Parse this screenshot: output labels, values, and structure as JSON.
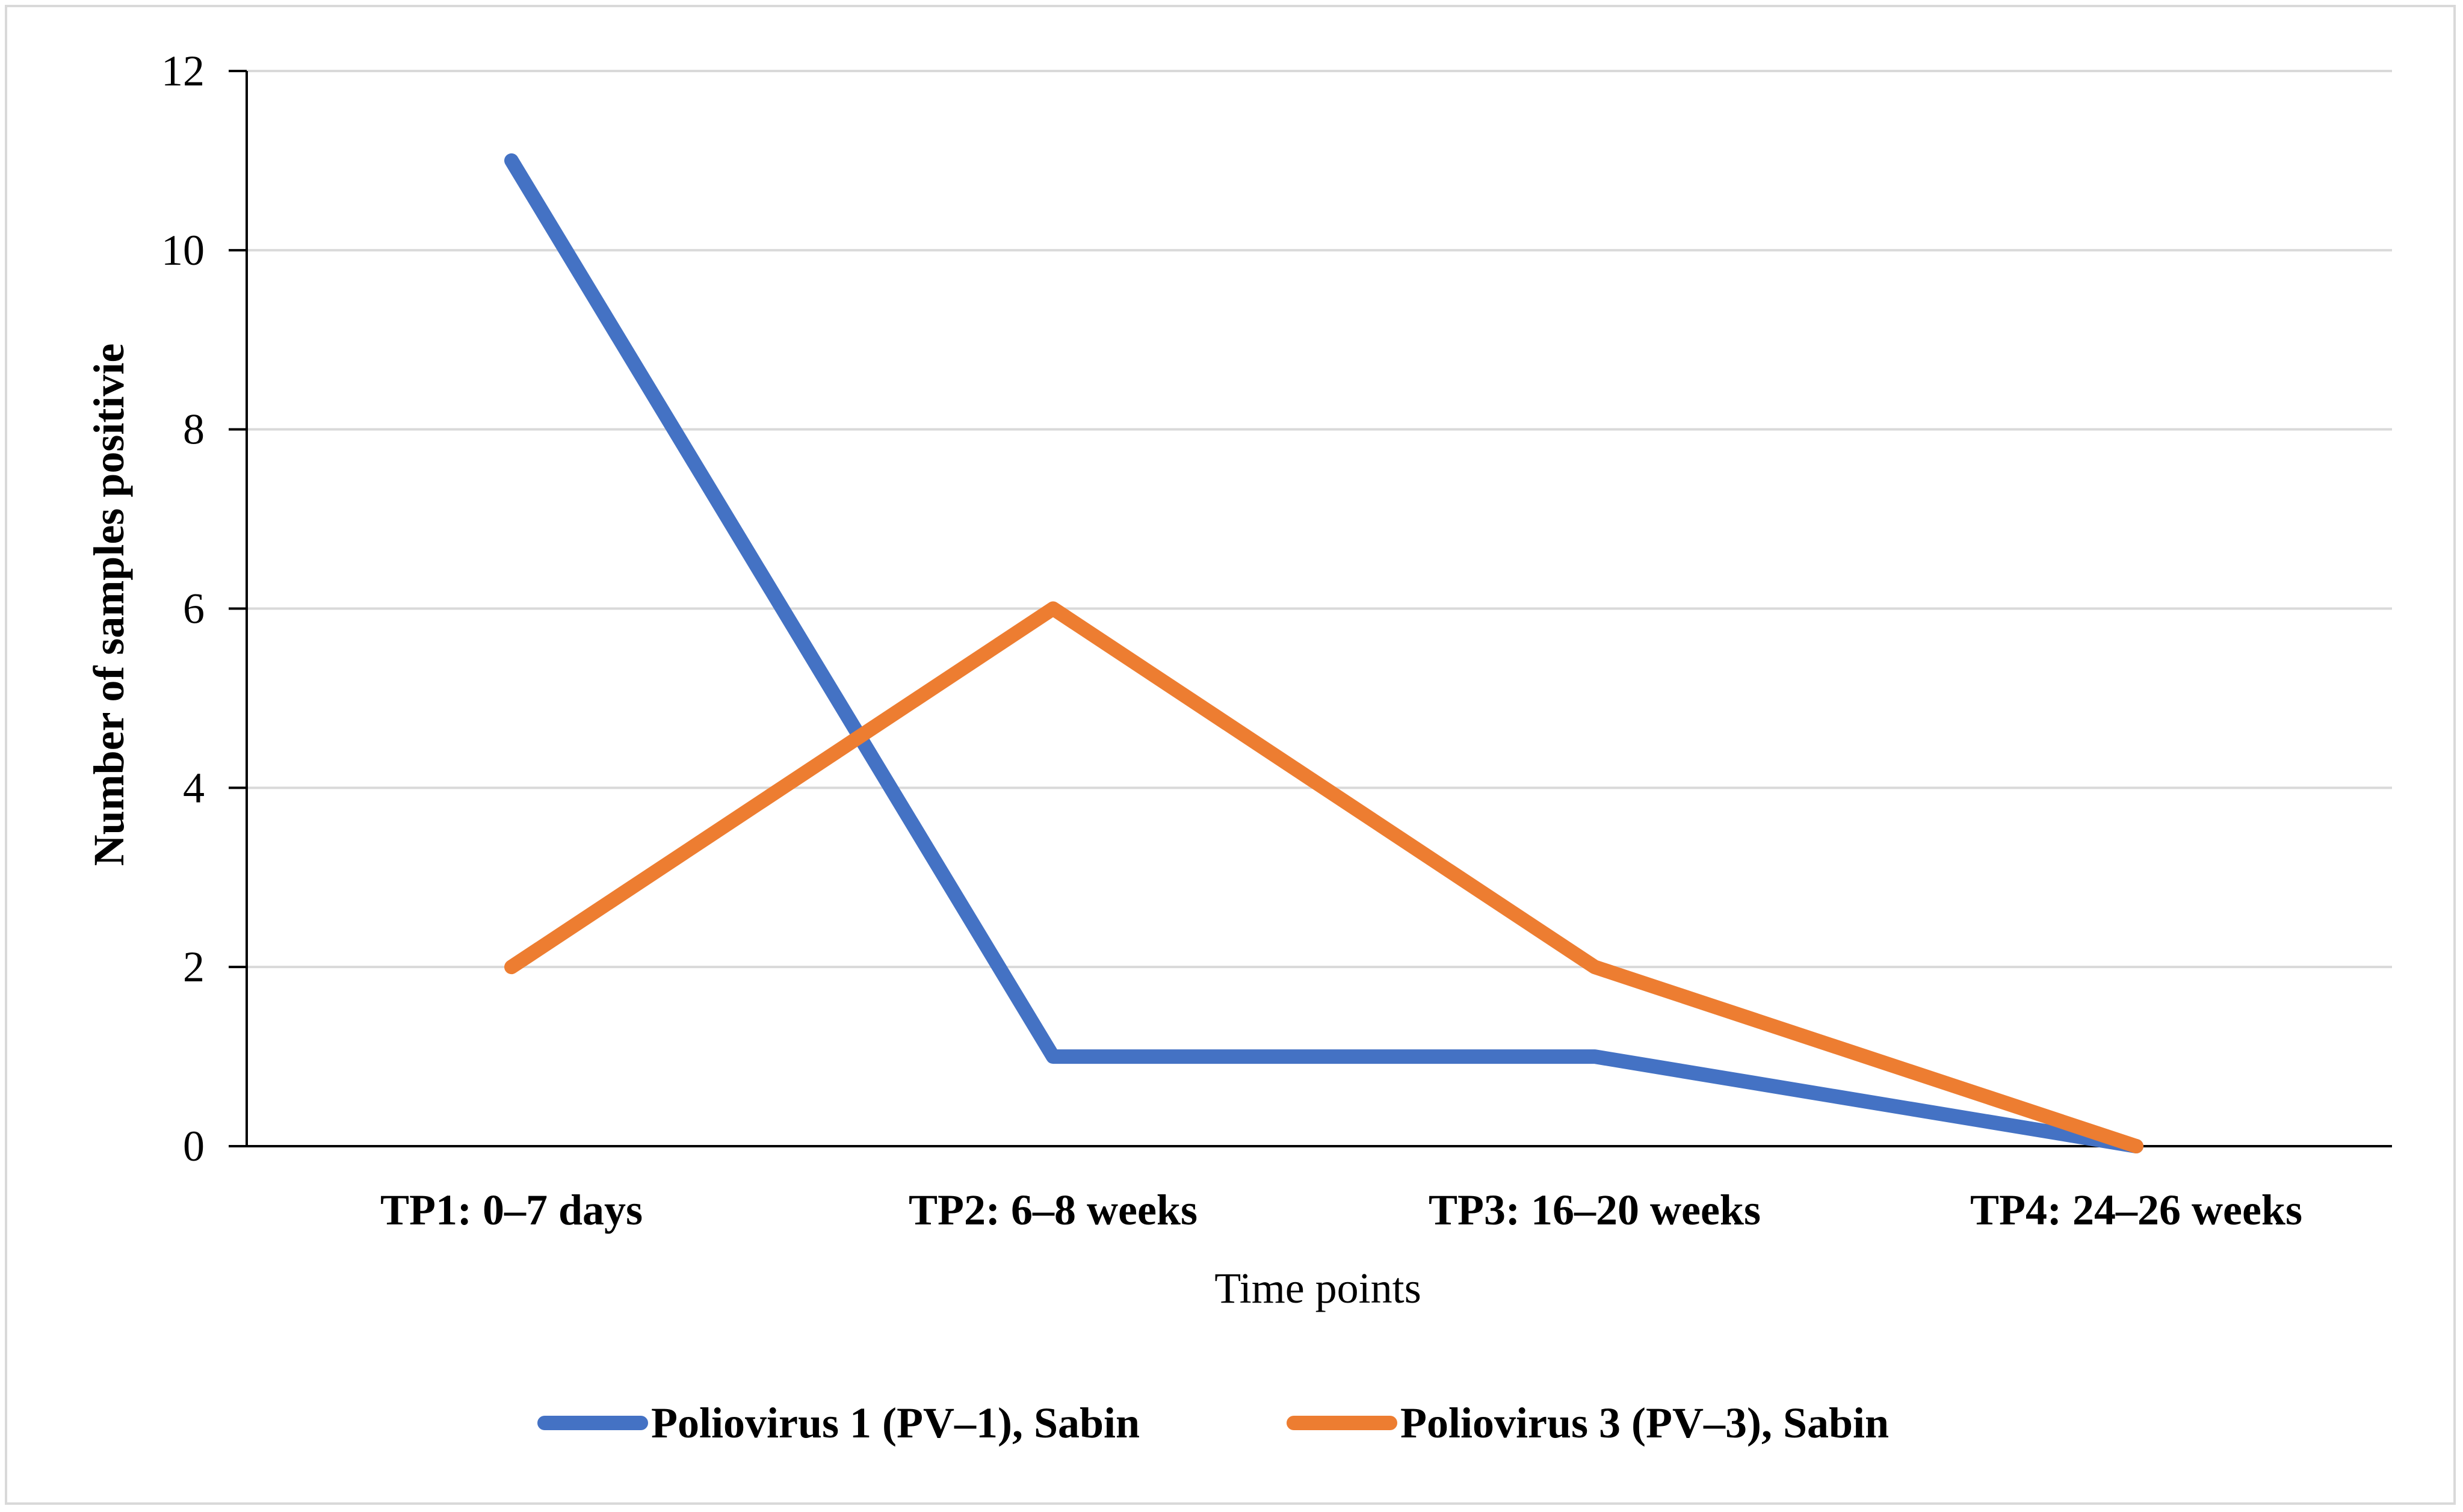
{
  "chart_data": {
    "type": "line",
    "title": "",
    "xlabel": "Time points",
    "ylabel": "Number of samples positivie",
    "categories": [
      "TP1: 0–7 days",
      "TP2: 6–8 weeks",
      "TP3: 16–20 weeks",
      "TP4: 24–26 weeks"
    ],
    "ylim": [
      0,
      12
    ],
    "yticks": [
      0,
      2,
      4,
      6,
      8,
      10,
      12
    ],
    "ytick_labels": [
      "0",
      "2",
      "4",
      "6",
      "8",
      "10",
      "12"
    ],
    "grid": true,
    "legend_position": "bottom",
    "series": [
      {
        "name": "Poliovirus 1 (PV–1), Sabin",
        "color": "#4472c4",
        "values": [
          11,
          1,
          1,
          0
        ]
      },
      {
        "name": "Poliovirus 3 (PV–3), Sabin",
        "color": "#ed7d31",
        "values": [
          2,
          6,
          2,
          0
        ]
      }
    ]
  },
  "colors": {
    "gridline": "#d9d9d9",
    "axis": "#000000",
    "frame": "#d9d9d9"
  }
}
